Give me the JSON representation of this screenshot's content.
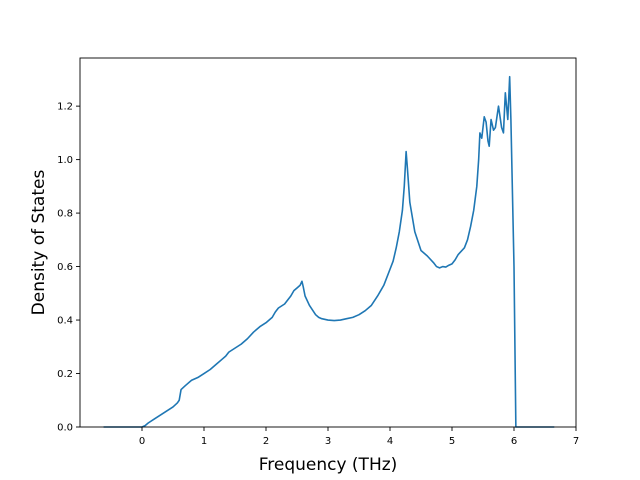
{
  "chart_data": {
    "type": "line",
    "title": "",
    "xlabel": "Frequency (THz)",
    "ylabel": "Density of States",
    "xlim": [
      -1.0,
      7.0
    ],
    "ylim": [
      0.0,
      1.38
    ],
    "xticks": [
      0,
      1,
      2,
      3,
      4,
      5,
      6,
      7
    ],
    "yticks": [
      0.0,
      0.2,
      0.4,
      0.6,
      0.8,
      1.0,
      1.2
    ],
    "xtick_labels": [
      "0",
      "1",
      "2",
      "3",
      "4",
      "5",
      "6",
      "7"
    ],
    "ytick_labels": [
      "0.0",
      "0.2",
      "0.4",
      "0.6",
      "0.8",
      "1.0",
      "1.2"
    ],
    "grid": false,
    "legend": "none",
    "color": "#1f77b4",
    "series": [
      {
        "name": "",
        "points": [
          [
            -0.62,
            0.0
          ],
          [
            0.0,
            0.0
          ],
          [
            0.05,
            0.005
          ],
          [
            0.1,
            0.015
          ],
          [
            0.2,
            0.03
          ],
          [
            0.3,
            0.045
          ],
          [
            0.4,
            0.06
          ],
          [
            0.5,
            0.075
          ],
          [
            0.57,
            0.09
          ],
          [
            0.6,
            0.1
          ],
          [
            0.63,
            0.14
          ],
          [
            0.7,
            0.155
          ],
          [
            0.8,
            0.175
          ],
          [
            0.85,
            0.18
          ],
          [
            0.9,
            0.185
          ],
          [
            1.0,
            0.2
          ],
          [
            1.1,
            0.215
          ],
          [
            1.2,
            0.235
          ],
          [
            1.3,
            0.255
          ],
          [
            1.35,
            0.265
          ],
          [
            1.4,
            0.28
          ],
          [
            1.5,
            0.295
          ],
          [
            1.6,
            0.31
          ],
          [
            1.7,
            0.33
          ],
          [
            1.8,
            0.355
          ],
          [
            1.9,
            0.375
          ],
          [
            2.0,
            0.39
          ],
          [
            2.1,
            0.41
          ],
          [
            2.15,
            0.43
          ],
          [
            2.2,
            0.445
          ],
          [
            2.3,
            0.46
          ],
          [
            2.4,
            0.49
          ],
          [
            2.45,
            0.51
          ],
          [
            2.5,
            0.52
          ],
          [
            2.55,
            0.53
          ],
          [
            2.58,
            0.545
          ],
          [
            2.6,
            0.525
          ],
          [
            2.63,
            0.49
          ],
          [
            2.7,
            0.455
          ],
          [
            2.8,
            0.42
          ],
          [
            2.85,
            0.41
          ],
          [
            2.9,
            0.405
          ],
          [
            3.0,
            0.4
          ],
          [
            3.1,
            0.398
          ],
          [
            3.2,
            0.4
          ],
          [
            3.3,
            0.405
          ],
          [
            3.4,
            0.41
          ],
          [
            3.5,
            0.42
          ],
          [
            3.6,
            0.435
          ],
          [
            3.7,
            0.455
          ],
          [
            3.8,
            0.49
          ],
          [
            3.9,
            0.53
          ],
          [
            4.0,
            0.59
          ],
          [
            4.05,
            0.62
          ],
          [
            4.1,
            0.67
          ],
          [
            4.15,
            0.73
          ],
          [
            4.2,
            0.81
          ],
          [
            4.23,
            0.9
          ],
          [
            4.26,
            1.03
          ],
          [
            4.28,
            0.97
          ],
          [
            4.32,
            0.84
          ],
          [
            4.4,
            0.73
          ],
          [
            4.5,
            0.66
          ],
          [
            4.6,
            0.64
          ],
          [
            4.7,
            0.615
          ],
          [
            4.75,
            0.6
          ],
          [
            4.8,
            0.595
          ],
          [
            4.85,
            0.6
          ],
          [
            4.9,
            0.598
          ],
          [
            4.95,
            0.605
          ],
          [
            5.0,
            0.61
          ],
          [
            5.05,
            0.625
          ],
          [
            5.1,
            0.645
          ],
          [
            5.2,
            0.67
          ],
          [
            5.25,
            0.7
          ],
          [
            5.3,
            0.75
          ],
          [
            5.35,
            0.81
          ],
          [
            5.4,
            0.9
          ],
          [
            5.43,
            1.0
          ],
          [
            5.45,
            1.1
          ],
          [
            5.48,
            1.08
          ],
          [
            5.52,
            1.16
          ],
          [
            5.55,
            1.14
          ],
          [
            5.58,
            1.07
          ],
          [
            5.6,
            1.05
          ],
          [
            5.63,
            1.15
          ],
          [
            5.67,
            1.11
          ],
          [
            5.7,
            1.12
          ],
          [
            5.75,
            1.2
          ],
          [
            5.8,
            1.12
          ],
          [
            5.83,
            1.1
          ],
          [
            5.86,
            1.25
          ],
          [
            5.9,
            1.15
          ],
          [
            5.93,
            1.31
          ],
          [
            5.95,
            1.15
          ],
          [
            6.0,
            0.6
          ],
          [
            6.03,
            0.0
          ],
          [
            6.65,
            0.0
          ]
        ]
      }
    ]
  }
}
